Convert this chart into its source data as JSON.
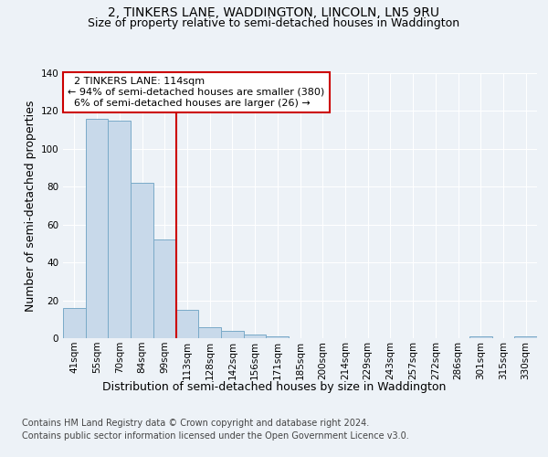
{
  "title_line1": "2, TINKERS LANE, WADDINGTON, LINCOLN, LN5 9RU",
  "title_line2": "Size of property relative to semi-detached houses in Waddington",
  "xlabel": "Distribution of semi-detached houses by size in Waddington",
  "ylabel": "Number of semi-detached properties",
  "footer_line1": "Contains HM Land Registry data © Crown copyright and database right 2024.",
  "footer_line2": "Contains public sector information licensed under the Open Government Licence v3.0.",
  "categories": [
    "41sqm",
    "55sqm",
    "70sqm",
    "84sqm",
    "99sqm",
    "113sqm",
    "128sqm",
    "142sqm",
    "156sqm",
    "171sqm",
    "185sqm",
    "200sqm",
    "214sqm",
    "229sqm",
    "243sqm",
    "257sqm",
    "272sqm",
    "286sqm",
    "301sqm",
    "315sqm",
    "330sqm"
  ],
  "values": [
    16,
    116,
    115,
    82,
    52,
    15,
    6,
    4,
    2,
    1,
    0,
    0,
    0,
    0,
    0,
    0,
    0,
    0,
    1,
    0,
    1
  ],
  "bar_color": "#c8d9ea",
  "bar_edge_color": "#7aaac8",
  "vline_x_idx": 5,
  "vline_color": "#cc0000",
  "vline_label": "2 TINKERS LANE: 114sqm",
  "pct_smaller": 94,
  "count_smaller": 380,
  "pct_larger": 6,
  "count_larger": 26,
  "annotation_box_color": "#cc0000",
  "ylim": [
    0,
    140
  ],
  "yticks": [
    0,
    20,
    40,
    60,
    80,
    100,
    120,
    140
  ],
  "bg_color": "#edf2f7",
  "plot_bg_color": "#edf2f7",
  "grid_color": "#ffffff",
  "title_fontsize": 10,
  "subtitle_fontsize": 9,
  "axis_label_fontsize": 9,
  "tick_fontsize": 7.5,
  "footer_fontsize": 7,
  "annotation_fontsize": 8
}
